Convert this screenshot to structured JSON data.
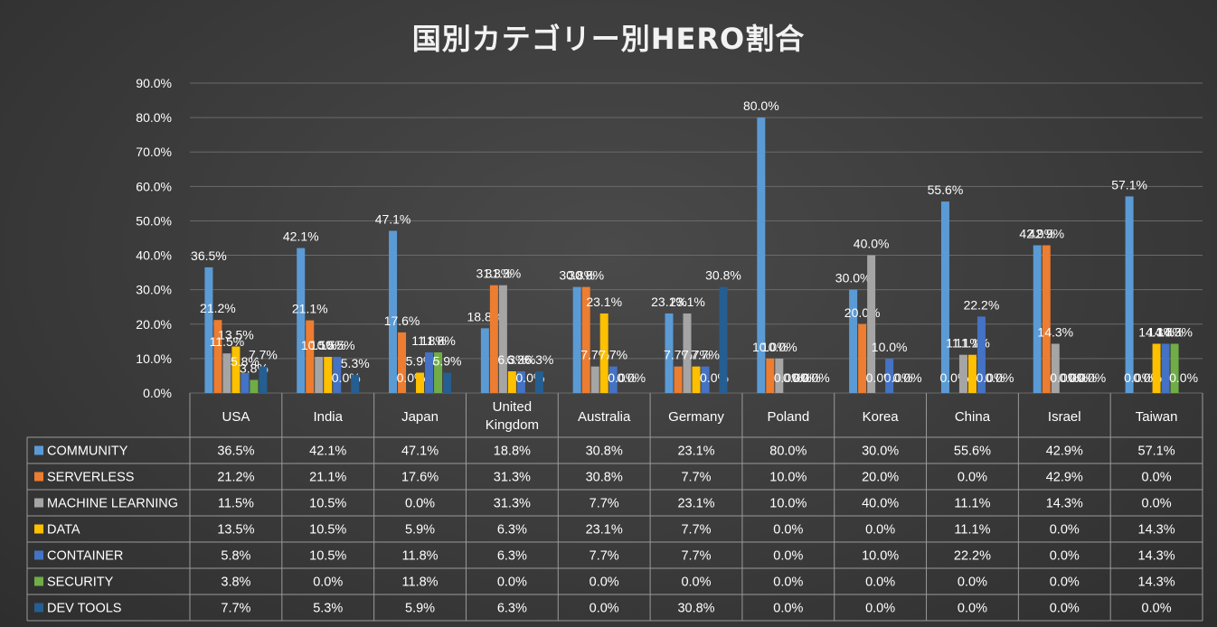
{
  "chart_data": {
    "type": "bar",
    "title": "国別カテゴリー別HERO割合",
    "xlabel": "",
    "ylabel": "",
    "ylim": [
      0,
      90
    ],
    "y_ticks": [
      "0.0%",
      "10.0%",
      "20.0%",
      "30.0%",
      "40.0%",
      "50.0%",
      "60.0%",
      "70.0%",
      "80.0%",
      "90.0%"
    ],
    "grid": true,
    "legend": "data-table",
    "categories": [
      "USA",
      "India",
      "Japan",
      "United Kingdom",
      "Australia",
      "Germany",
      "Poland",
      "Korea",
      "China",
      "Israel",
      "Taiwan"
    ],
    "category_labels": [
      [
        "USA"
      ],
      [
        "India"
      ],
      [
        "Japan"
      ],
      [
        "United",
        "Kingdom"
      ],
      [
        "Australia"
      ],
      [
        "Germany"
      ],
      [
        "Poland"
      ],
      [
        "Korea"
      ],
      [
        "China"
      ],
      [
        "Israel"
      ],
      [
        "Taiwan"
      ]
    ],
    "series": [
      {
        "name": "COMMUNITY",
        "color": "#5b9bd5",
        "values": [
          36.5,
          42.1,
          47.1,
          18.8,
          30.8,
          23.1,
          80.0,
          30.0,
          55.6,
          42.9,
          57.1
        ]
      },
      {
        "name": "SERVERLESS",
        "color": "#ed7d31",
        "values": [
          21.2,
          21.1,
          17.6,
          31.3,
          30.8,
          7.7,
          10.0,
          20.0,
          0.0,
          42.9,
          0.0
        ]
      },
      {
        "name": "MACHINE LEARNING",
        "color": "#a5a5a5",
        "values": [
          11.5,
          10.5,
          0.0,
          31.3,
          7.7,
          23.1,
          10.0,
          40.0,
          11.1,
          14.3,
          0.0
        ]
      },
      {
        "name": "DATA",
        "color": "#ffc000",
        "values": [
          13.5,
          10.5,
          5.9,
          6.3,
          23.1,
          7.7,
          0.0,
          0.0,
          11.1,
          0.0,
          14.3
        ]
      },
      {
        "name": "CONTAINER",
        "color": "#4472c4",
        "values": [
          5.8,
          10.5,
          11.8,
          6.3,
          7.7,
          7.7,
          0.0,
          10.0,
          22.2,
          0.0,
          14.3
        ]
      },
      {
        "name": "SECURITY",
        "color": "#70ad47",
        "values": [
          3.8,
          0.0,
          11.8,
          0.0,
          0.0,
          0.0,
          0.0,
          0.0,
          0.0,
          0.0,
          14.3
        ]
      },
      {
        "name": "DEV TOOLS",
        "color": "#255e91",
        "values": [
          7.7,
          5.3,
          5.9,
          6.3,
          0.0,
          30.8,
          0.0,
          0.0,
          0.0,
          0.0,
          0.0
        ]
      }
    ]
  }
}
